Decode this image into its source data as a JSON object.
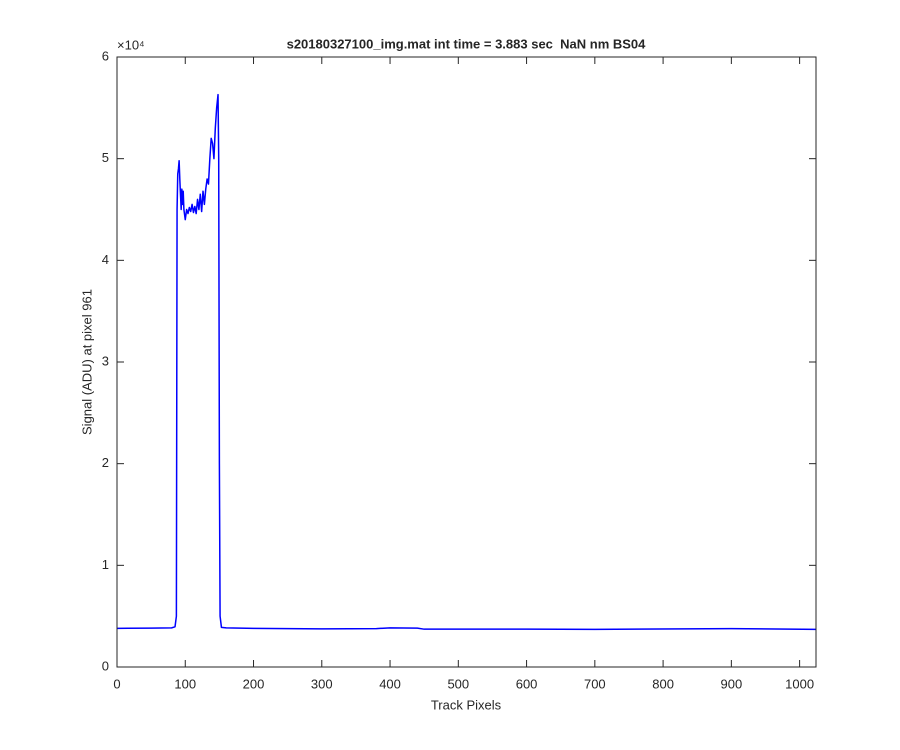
{
  "chart_data": {
    "type": "line",
    "title": "s20180327100_img.mat int time = 3.883 sec  NaN nm BS04",
    "xlabel": "Track Pixels",
    "ylabel": "Signal (ADU) at pixel 961",
    "y_exponent_label": "×10⁴",
    "color": "#0000ff",
    "xlim": [
      0,
      1024
    ],
    "xticks": [
      0,
      100,
      200,
      300,
      400,
      500,
      600,
      700,
      800,
      900,
      1000
    ],
    "ylim": [
      0,
      60000
    ],
    "yticks": [
      {
        "value": 0,
        "label": "0"
      },
      {
        "value": 10000,
        "label": "1"
      },
      {
        "value": 20000,
        "label": "2"
      },
      {
        "value": 30000,
        "label": "3"
      },
      {
        "value": 40000,
        "label": "4"
      },
      {
        "value": 50000,
        "label": "5"
      },
      {
        "value": 60000,
        "label": "6"
      }
    ],
    "x": [
      0,
      50,
      80,
      85,
      87,
      88,
      89,
      90,
      91,
      92,
      93,
      94,
      95,
      96,
      97,
      98,
      100,
      102,
      104,
      106,
      108,
      110,
      112,
      114,
      116,
      118,
      120,
      122,
      124,
      126,
      128,
      130,
      132,
      134,
      136,
      138,
      140,
      142,
      144,
      146,
      148,
      149,
      150,
      151,
      153,
      160,
      200,
      300,
      380,
      400,
      440,
      450,
      600,
      700,
      900,
      1024
    ],
    "values": [
      3800,
      3820,
      3850,
      3950,
      5000,
      45000,
      48500,
      49000,
      49800,
      48000,
      46500,
      45000,
      47000,
      45500,
      46800,
      45000,
      44000,
      45000,
      44600,
      45200,
      44800,
      45500,
      44700,
      45300,
      44600,
      46000,
      45000,
      46500,
      44800,
      46800,
      45500,
      47000,
      48000,
      47500,
      50000,
      52000,
      51500,
      50000,
      53000,
      55000,
      56300,
      50000,
      20000,
      5000,
      3900,
      3850,
      3800,
      3750,
      3780,
      3850,
      3820,
      3720,
      3720,
      3700,
      3780,
      3700
    ]
  }
}
